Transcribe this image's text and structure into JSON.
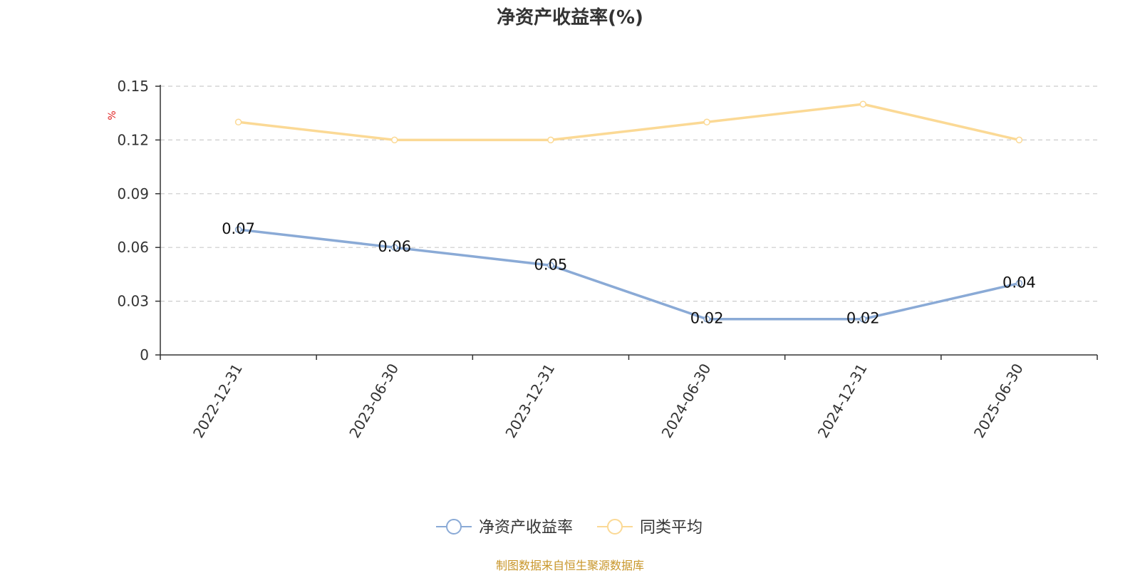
{
  "source_note": "制图数据来自恒生聚源数据库",
  "colors": {
    "series_main": "#8aaad6",
    "series_avg": "#fbd995",
    "axis": "#333333",
    "grid": "#cccccc",
    "unit": "#e02020",
    "source": "#c8962a"
  },
  "chart_data": {
    "type": "line",
    "title": "净资产收益率(%)",
    "ylabel": "%",
    "xlabel": "",
    "categories": [
      "2022-12-31",
      "2023-06-30",
      "2023-12-31",
      "2024-06-30",
      "2024-12-31",
      "2025-06-30"
    ],
    "y_ticks": [
      "0",
      "0.03",
      "0.06",
      "0.09",
      "0.12",
      "0.15"
    ],
    "ylim": [
      0,
      0.15
    ],
    "grid": true,
    "legend_position": "bottom-center",
    "series": [
      {
        "name": "净资产收益率",
        "values": [
          0.07,
          0.06,
          0.05,
          0.02,
          0.02,
          0.04
        ],
        "labels": [
          "0.07",
          "0.06",
          "0.05",
          "0.02",
          "0.02",
          "0.04"
        ],
        "show_labels": true
      },
      {
        "name": "同类平均",
        "values": [
          0.13,
          0.12,
          0.12,
          0.13,
          0.14,
          0.12
        ],
        "show_labels": false
      }
    ]
  }
}
